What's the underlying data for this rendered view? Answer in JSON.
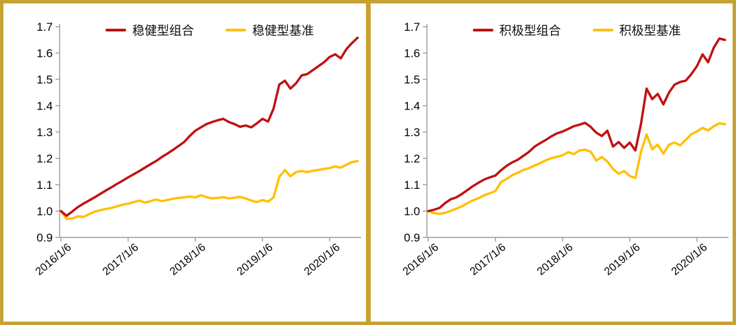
{
  "colors": {
    "portfolio_line": "#c01111",
    "benchmark_line": "#ffc000",
    "frame_border": "#c6a235",
    "axis_line": "#9b9b9b",
    "label_text": "#000000"
  },
  "chart_data": [
    {
      "type": "line",
      "title": "",
      "legend_position": "top",
      "grid": false,
      "ylim": [
        0.9,
        1.7
      ],
      "y_tick_labels": [
        "0.9",
        "1.0",
        "1.1",
        "1.2",
        "1.3",
        "1.4",
        "1.5",
        "1.6",
        "1.7"
      ],
      "x_tick_labels": [
        "2016/1/6",
        "2017/1/6",
        "2018/1/6",
        "2019/1/6",
        "2020/1/6"
      ],
      "x_start": "2016/1/6",
      "x_interval": "monthly",
      "series": [
        {
          "name": "稳健型组合",
          "color_key": "portfolio_line",
          "values": [
            1.0,
            0.982,
            0.998,
            1.015,
            1.028,
            1.04,
            1.052,
            1.065,
            1.078,
            1.09,
            1.103,
            1.115,
            1.128,
            1.14,
            1.152,
            1.165,
            1.178,
            1.19,
            1.205,
            1.218,
            1.232,
            1.247,
            1.262,
            1.285,
            1.305,
            1.318,
            1.33,
            1.338,
            1.345,
            1.35,
            1.338,
            1.33,
            1.32,
            1.325,
            1.318,
            1.333,
            1.35,
            1.34,
            1.39,
            1.48,
            1.495,
            1.465,
            1.485,
            1.515,
            1.52,
            1.535,
            1.55,
            1.565,
            1.585,
            1.595,
            1.58,
            1.615,
            1.638,
            1.658
          ]
        },
        {
          "name": "稳健型基准",
          "color_key": "benchmark_line",
          "values": [
            1.0,
            0.97,
            0.972,
            0.98,
            0.978,
            0.988,
            0.998,
            1.003,
            1.008,
            1.012,
            1.018,
            1.024,
            1.028,
            1.034,
            1.04,
            1.032,
            1.038,
            1.044,
            1.038,
            1.042,
            1.047,
            1.05,
            1.052,
            1.055,
            1.052,
            1.06,
            1.053,
            1.048,
            1.05,
            1.053,
            1.048,
            1.051,
            1.054,
            1.048,
            1.04,
            1.034,
            1.042,
            1.036,
            1.052,
            1.13,
            1.156,
            1.132,
            1.148,
            1.152,
            1.148,
            1.153,
            1.156,
            1.16,
            1.163,
            1.17,
            1.165,
            1.176,
            1.186,
            1.19
          ]
        }
      ]
    },
    {
      "type": "line",
      "title": "",
      "legend_position": "top",
      "grid": false,
      "ylim": [
        0.9,
        1.7
      ],
      "y_tick_labels": [
        "0.9",
        "1.0",
        "1.1",
        "1.2",
        "1.3",
        "1.4",
        "1.5",
        "1.6",
        "1.7"
      ],
      "x_tick_labels": [
        "2016/1/6",
        "2017/1/6",
        "2018/1/6",
        "2019/1/6",
        "2020/1/6"
      ],
      "x_start": "2016/1/6",
      "x_interval": "monthly",
      "series": [
        {
          "name": "积极型组合",
          "color_key": "portfolio_line",
          "values": [
            1.0,
            1.005,
            1.012,
            1.03,
            1.045,
            1.052,
            1.065,
            1.08,
            1.095,
            1.108,
            1.12,
            1.128,
            1.135,
            1.155,
            1.172,
            1.185,
            1.195,
            1.21,
            1.225,
            1.245,
            1.258,
            1.27,
            1.284,
            1.295,
            1.302,
            1.312,
            1.322,
            1.328,
            1.335,
            1.32,
            1.298,
            1.285,
            1.305,
            1.245,
            1.262,
            1.24,
            1.26,
            1.23,
            1.33,
            1.465,
            1.425,
            1.445,
            1.405,
            1.45,
            1.48,
            1.49,
            1.495,
            1.52,
            1.55,
            1.595,
            1.565,
            1.62,
            1.655,
            1.65
          ]
        },
        {
          "name": "积极型基准",
          "color_key": "benchmark_line",
          "values": [
            1.0,
            0.992,
            0.99,
            0.993,
            1.001,
            1.009,
            1.018,
            1.03,
            1.041,
            1.049,
            1.06,
            1.068,
            1.076,
            1.11,
            1.122,
            1.136,
            1.146,
            1.156,
            1.163,
            1.173,
            1.182,
            1.193,
            1.201,
            1.206,
            1.212,
            1.224,
            1.216,
            1.23,
            1.233,
            1.226,
            1.192,
            1.205,
            1.188,
            1.16,
            1.142,
            1.152,
            1.133,
            1.126,
            1.225,
            1.291,
            1.235,
            1.252,
            1.218,
            1.252,
            1.26,
            1.25,
            1.27,
            1.292,
            1.302,
            1.316,
            1.306,
            1.322,
            1.333,
            1.33
          ]
        }
      ]
    }
  ]
}
